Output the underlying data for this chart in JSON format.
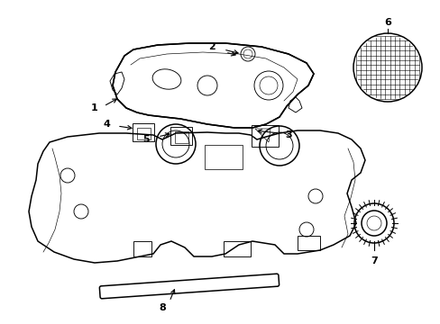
{
  "background_color": "#ffffff",
  "line_color": "#000000",
  "figsize": [
    4.89,
    3.6
  ],
  "dpi": 100,
  "lw": 1.1,
  "tlw": 0.65
}
